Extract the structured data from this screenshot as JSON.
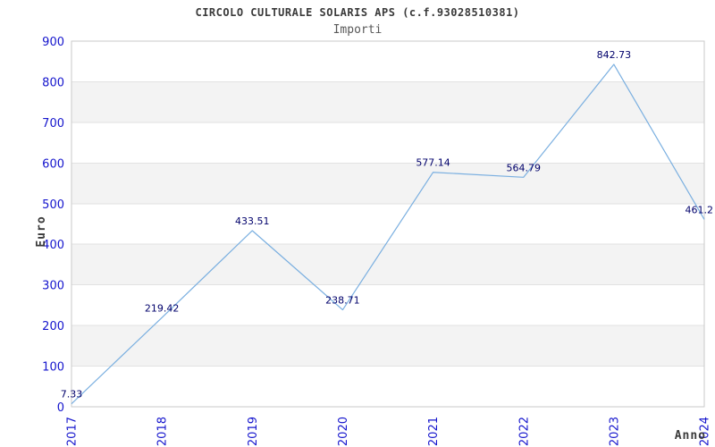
{
  "header": {
    "title": "CIRCOLO CULTURALE SOLARIS APS (c.f.93028510381)",
    "subtitle": "Importi"
  },
  "chart_data": {
    "type": "line",
    "title": "CIRCOLO CULTURALE SOLARIS APS (c.f.93028510381)",
    "subtitle": "Importi",
    "xlabel": "Anno",
    "ylabel": "Euro",
    "categories": [
      "2017",
      "2018",
      "2019",
      "2020",
      "2021",
      "2022",
      "2023",
      "2024"
    ],
    "values": [
      7.33,
      219.42,
      433.51,
      238.71,
      577.14,
      564.79,
      842.73,
      461.2
    ],
    "point_labels": [
      "7.33",
      "219.42",
      "433.51",
      "238.71",
      "577.14",
      "564.79",
      "842.73",
      "461.2"
    ],
    "ylim": [
      0,
      900
    ],
    "ytick_step": 100,
    "legend": "none",
    "grid": "horizontal-with-alternating-bands",
    "colors": {
      "line": "#7aafe0",
      "tick_label": "#1515cd",
      "point_label": "#00006b",
      "band": "#f3f3f3",
      "gridline": "#e2e2e2",
      "border": "#c9c9c9",
      "axis_title": "#3a3a3a"
    }
  }
}
